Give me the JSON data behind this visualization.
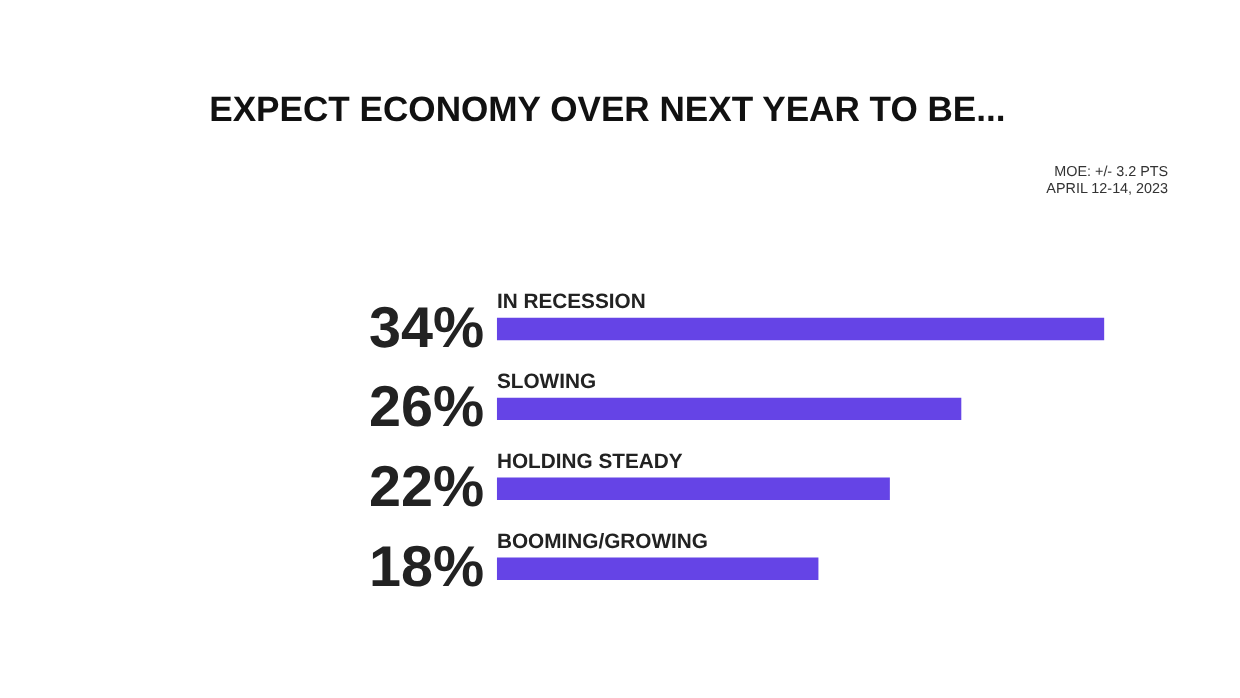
{
  "chart_data": {
    "type": "bar",
    "orientation": "horizontal",
    "title": "EXPECT ECONOMY OVER NEXT YEAR TO BE...",
    "categories": [
      "IN RECESSION",
      "SLOWING",
      "HOLDING STEADY",
      "BOOMING/GROWING"
    ],
    "values": [
      34,
      26,
      22,
      18
    ],
    "value_labels": [
      "34%",
      "26%",
      "22%",
      "18%"
    ],
    "color": "#6544e6",
    "annotations": [
      "MOE: +/- 3.2 PTS",
      "APRIL 12-14, 2023"
    ],
    "grid": false
  }
}
